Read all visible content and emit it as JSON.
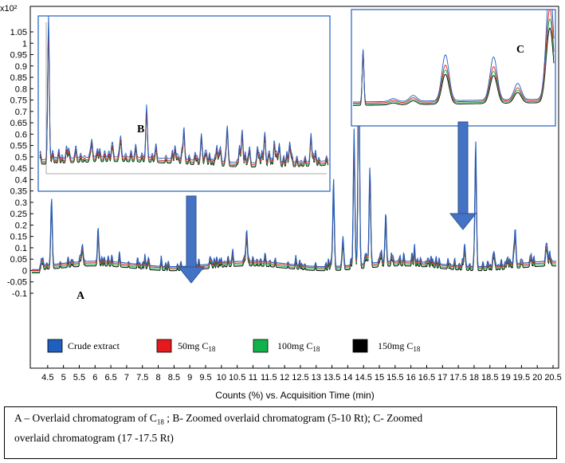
{
  "chart_data": {
    "type": "line",
    "title": "",
    "y_multiplier": "x10²",
    "xlabel": "Counts (%) vs. Acquisition Time (min)",
    "ylabel": "",
    "xlim": [
      4.0,
      20.6
    ],
    "ylim": [
      -0.15,
      1.1
    ],
    "y_ticks": [
      "1.05",
      "1",
      "0.95",
      "0.9",
      "0.85",
      "0.8",
      "0.75",
      "0.7",
      "0.65",
      "0.6",
      "0.55",
      "0.5",
      "0.45",
      "0.4",
      "0.35",
      "0.3",
      "0.25",
      "0.2",
      "0.15",
      "0.1",
      "0.05",
      "0",
      "-0.05",
      "-0.1"
    ],
    "x_ticks": [
      "4.5",
      "5",
      "5.5",
      "6",
      "6.5",
      "7",
      "7.5",
      "8",
      "8.5",
      "9",
      "9.5",
      "10",
      "10.5",
      "11",
      "11.5",
      "12",
      "12.5",
      "13",
      "13.5",
      "14",
      "14.5",
      "15",
      "15.5",
      "16",
      "16.5",
      "17",
      "17.5",
      "18",
      "18.5",
      "19",
      "19.5",
      "20",
      "20.5"
    ],
    "series": [
      {
        "name": "Crude extract",
        "color": "#1f5fbf"
      },
      {
        "name": "50mg C18",
        "color": "#e41a1c"
      },
      {
        "name": "100mg C18",
        "color": "#12b24a"
      },
      {
        "name": "150mg C18",
        "color": "#000000"
      }
    ],
    "peaks": [
      {
        "t": 4.62,
        "h": 0.28
      },
      {
        "t": 5.6,
        "h": 0.07
      },
      {
        "t": 6.1,
        "h": 0.1
      },
      {
        "t": 9.15,
        "h": 0.1
      },
      {
        "t": 10.8,
        "h": 0.14
      },
      {
        "t": 13.55,
        "h": 0.39
      },
      {
        "t": 13.85,
        "h": 0.12
      },
      {
        "t": 14.2,
        "h": 0.6
      },
      {
        "t": 14.35,
        "h": 1.02
      },
      {
        "t": 14.7,
        "h": 0.42
      },
      {
        "t": 15.2,
        "h": 0.2
      },
      {
        "t": 17.7,
        "h": 0.1
      },
      {
        "t": 18.05,
        "h": 0.56
      },
      {
        "t": 19.3,
        "h": 0.16
      },
      {
        "t": 20.3,
        "h": 0.08
      }
    ],
    "panels": {
      "A": "A",
      "B": "B",
      "C": "C"
    }
  },
  "legend": [
    {
      "label": "Crude extract",
      "color": "#1f5fbf"
    },
    {
      "label": "50mg C",
      "sub": "18",
      "color": "#e41a1c"
    },
    {
      "label": "100mg C",
      "sub": "18",
      "color": "#12b24a"
    },
    {
      "label": "150mg C",
      "sub": "18",
      "color": "#000000"
    }
  ],
  "caption": {
    "line1": "A – Overlaid chromatogram of C",
    "sub1": "18",
    "line1b": " ; B- Zoomed overlaid chromatogram (5-10 Rt); C- Zoomed",
    "line2": "overlaid  chromatogram (17 -17.5 Rt)"
  }
}
